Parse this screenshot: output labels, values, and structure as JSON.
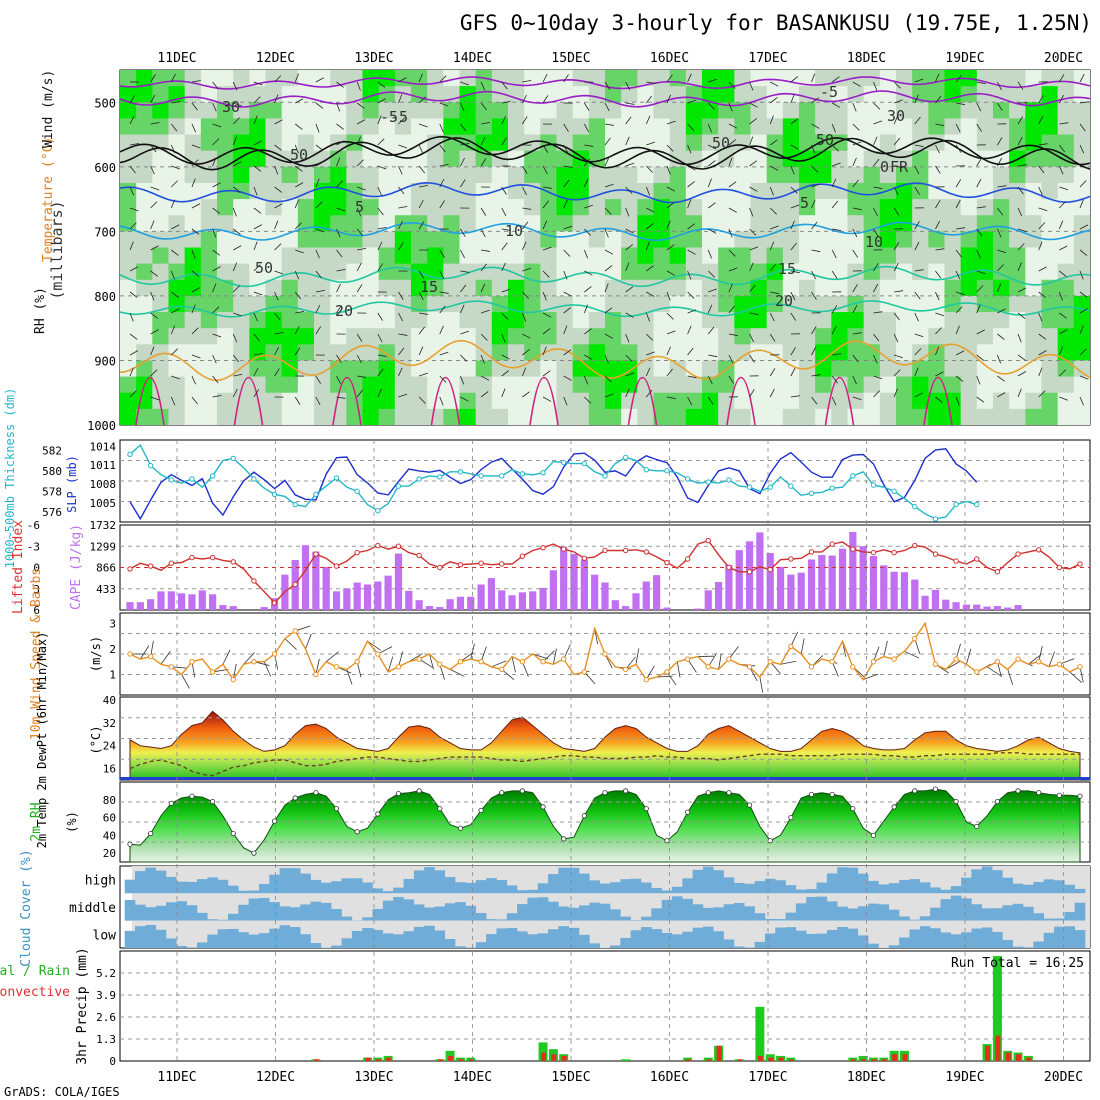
{
  "header": {
    "title": "GFS 0~10day 3-hourly for BASANKUSU (19.75E, 1.25N)",
    "credit": "GrADS: COLA/IGES"
  },
  "colors": {
    "rh_light": "#e8f4e8",
    "rh_mid": "#c6d8c6",
    "rh_green": "#66d466",
    "rh_bright": "#00e800",
    "temp_purple": "#9a1ec8",
    "temp_blue": "#2050e0",
    "temp_lblue": "#20a0e0",
    "temp_teal": "#20c8a0",
    "temp_orange": "#e8a030",
    "temp_red": "#d02080",
    "slp": "#1c2ed0",
    "thickness": "#20b8c8",
    "lifted_index": "#d03030",
    "cape": "#c070f0",
    "wind10m": "#e89020",
    "cloud": "#70acd8",
    "cloud_bg": "#e0e0e0",
    "precip_total": "#22c822",
    "precip_conv": "#e03020",
    "axis_label_green": "#20b020",
    "axis_label_orange": "#e08020",
    "axis_label_red": "#e03030"
  },
  "chart_data": [
    {
      "type": "heatmap",
      "panel": "upper-air",
      "ylabel_parts": [
        "RH (%)",
        "Temperature (°C)",
        "Wind (m/s)"
      ],
      "ylabel_right": "(millibars)",
      "yticks": [
        "500",
        "600",
        "700",
        "800",
        "900",
        "1000"
      ],
      "ylim": [
        1000,
        450
      ],
      "contour_labels": [
        "-5",
        "-5",
        "-5",
        "0",
        "FR",
        "5",
        "5",
        "10",
        "10",
        "15",
        "15",
        "20",
        "20",
        "50",
        "50",
        "50",
        "30",
        "30",
        "50"
      ]
    },
    {
      "type": "line",
      "panel": "slp-thickness",
      "ylabel_left": "1000~500mb Thickness (dm)",
      "ylabel_right": "SLP (mb)",
      "yticks_left": [
        "582",
        "580",
        "578",
        "576"
      ],
      "yticks_right": [
        "1014",
        "1011",
        "1008",
        "1005"
      ],
      "series": [
        {
          "name": "SLP (mb)",
          "values": [
            1005.2,
            1002.5,
            1005.5,
            1008.3,
            1009.5,
            1008.6,
            1007.8,
            1008.9,
            1005,
            1003.1,
            1006,
            1008.5,
            1009.9,
            1008.7,
            1007.3,
            1008.6,
            1006.3,
            1005.6,
            1005.5,
            1009.6,
            1012.2,
            1012.3,
            1009.5,
            1008.2,
            1006.6,
            1006.3,
            1008.4,
            1010.4,
            1010.1,
            1009.9,
            1010.2,
            1009.1,
            1008.1,
            1008.7,
            1010.3,
            1011.5,
            1012.1,
            1010.4,
            1008.8,
            1007,
            1006.4,
            1007.6,
            1010.7,
            1012.8,
            1012.9,
            1011.8,
            1009.9,
            1010.1,
            1009.3,
            1011.5,
            1012.5,
            1011.9,
            1011.4,
            1009.1,
            1005.8,
            1005.1,
            1007.8,
            1010.1,
            1010.6,
            1010.1,
            1007.3,
            1006.5,
            1009.7,
            1012,
            1013,
            1011.5,
            1009.9,
            1009.1,
            1009.1,
            1011.9,
            1012.6,
            1012.7,
            1011.2,
            1007.9,
            1005.2,
            1005.9,
            1008.6,
            1012.1,
            1013.4,
            1013.6,
            1011.2,
            1010.1,
            1008.3
          ]
        },
        {
          "name": "1000~500mb Thickness (dm)",
          "values": [
            581.6,
            582.5,
            580.5,
            579.6,
            579.1,
            578.8,
            579.2,
            578.4,
            579.5,
            581,
            581.2,
            580.3,
            579.2,
            578.3,
            577.7,
            577.5,
            576.7,
            576.5,
            577.7,
            578.5,
            579.3,
            578.4,
            578,
            576.7,
            576.1,
            576.8,
            578.5,
            578.5,
            579.2,
            579.5,
            579.4,
            579.9,
            579.9,
            579.7,
            579.5,
            579.5,
            579.5,
            580.1,
            579.7,
            579.6,
            579.8,
            580.9,
            580.8,
            580.7,
            580.7,
            579.9,
            579.5,
            580.7,
            581.3,
            581,
            580.1,
            580,
            580,
            579.8,
            579.2,
            578.8,
            578.9,
            578.8,
            579.1,
            578.5,
            578.4,
            578,
            578.4,
            579.4,
            578.5,
            577.6,
            577.8,
            577.9,
            578.3,
            578.4,
            579.5,
            579.9,
            578.6,
            578.4,
            578,
            577.3,
            576.5,
            575.8,
            575.3,
            575.5,
            576.7,
            577,
            576.7
          ]
        }
      ]
    },
    {
      "type": "bar",
      "panel": "cape-li",
      "ylabel_left": "Lifted Index",
      "ylabel_right": "CAPE (J/kg)",
      "yticks_left": [
        "-6",
        "-3",
        "0",
        "3",
        "6"
      ],
      "yticks_right": [
        "1732",
        "1299",
        "866",
        "433"
      ],
      "series": [
        {
          "name": "CAPE (J/kg)",
          "values": [
            160,
            160,
            220,
            380,
            380,
            340,
            320,
            400,
            320,
            100,
            80,
            0,
            0,
            60,
            240,
            720,
            1020,
            1320,
            1190,
            880,
            380,
            440,
            560,
            520,
            580,
            700,
            1150,
            390,
            200,
            80,
            60,
            220,
            270,
            270,
            520,
            650,
            400,
            300,
            360,
            380,
            450,
            810,
            1290,
            1140,
            1030,
            720,
            560,
            200,
            80,
            340,
            580,
            710,
            50,
            0,
            0,
            30,
            400,
            570,
            920,
            1220,
            1400,
            1580,
            1160,
            880,
            720,
            760,
            1030,
            1120,
            1110,
            1250,
            1590,
            1300,
            1100,
            910,
            780,
            770,
            620,
            290,
            410,
            210,
            160,
            110,
            110,
            70,
            80,
            50,
            100
          ]
        },
        {
          "name": "Lifted Index",
          "values": [
            0.2,
            -0.6,
            -0.2,
            0.4,
            -0.6,
            -0.7,
            -1.4,
            -1.2,
            -1.4,
            -1,
            -0.8,
            0.2,
            1.9,
            3.4,
            5,
            3.4,
            2.4,
            0.4,
            -1.9,
            -1.3,
            -0.2,
            -0.9,
            -2.1,
            -2.4,
            -3.1,
            -2.6,
            -3,
            -2.1,
            -1.7,
            -0.5,
            0,
            -0.8,
            -0.4,
            -0.5,
            -0.6,
            -0.4,
            -0.5,
            -0.5,
            -1.6,
            -2.4,
            -2.8,
            -3.3,
            -2.6,
            -2.2,
            -1.3,
            -1.5,
            -2.4,
            -2.4,
            -2.4,
            -2.5,
            -2.2,
            -1.5,
            -0.7,
            0.1,
            -1.2,
            -3.3,
            -3.8,
            -1.8,
            0,
            0.6,
            0.6,
            -0.1,
            0.3,
            -1.1,
            -1.2,
            -1.3,
            -2.2,
            -2.2,
            -3.3,
            -3.6,
            -2.6,
            -2.2,
            -2.1,
            -2.5,
            -2.1,
            -2.4,
            -3.1,
            -2.9,
            -1.9,
            -1.5,
            -0.9,
            -0.5,
            -1.2,
            0,
            0.6,
            -0.7,
            -1.9,
            -2.2,
            -2.5,
            -1.5,
            0,
            0.2,
            -0.5
          ]
        }
      ]
    },
    {
      "type": "line",
      "panel": "wind10m",
      "ylabel": "10m Wind Speed & Barbs",
      "ylabel_right": "(m/s)",
      "yticks": [
        "3",
        "2",
        "1"
      ],
      "series": [
        {
          "name": "10m Wind Speed (m/s)",
          "values": [
            1.8,
            1.6,
            1.7,
            1.4,
            1.3,
            1,
            1.5,
            1.6,
            1.1,
            1.4,
            0.8,
            1.4,
            1.5,
            1.5,
            1.8,
            2.4,
            2.7,
            2,
            1,
            1.5,
            1.3,
            1.2,
            1.5,
            2.3,
            1.8,
            1.1,
            1.3,
            1.5,
            1.6,
            1.8,
            1.4,
            1.2,
            1.5,
            1.6,
            1.5,
            1.3,
            1.2,
            1.7,
            1.5,
            1.8,
            1.5,
            1.4,
            1.6,
            1,
            1.1,
            2.8,
            1.8,
            1.3,
            1.2,
            1.4,
            0.8,
            0.9,
            1.1,
            1.5,
            1.6,
            1.7,
            1.3,
            1.2,
            1.6,
            1.4,
            1.3,
            0.9,
            1.5,
            1.4,
            2.1,
            1.8,
            1.3,
            1.6,
            1.5,
            2.3,
            1.3,
            0.8,
            1.5,
            1.7,
            1.6,
            1.9,
            2.4,
            3,
            1.4,
            1.2,
            1.6,
            1.4,
            1.1,
            1.3,
            1.5,
            1.2,
            1.6,
            1.4,
            1.5,
            1.3,
            1.4,
            1.1,
            1.3
          ]
        }
      ]
    },
    {
      "type": "area",
      "panel": "temperature",
      "ylabel": "2m Temp 2m DewPt (6hr Min/Max)",
      "ylabel_right": "(°C)",
      "yticks": [
        "40",
        "32",
        "24",
        "16"
      ],
      "series": [
        {
          "name": "2m Temp",
          "values": [
            26,
            24,
            23.5,
            23,
            24,
            28,
            31,
            32,
            36,
            33,
            29,
            26,
            23.5,
            22,
            22.5,
            24,
            28,
            31,
            31.5,
            30,
            27,
            25,
            23,
            22.5,
            22,
            23,
            27,
            30.5,
            31,
            30,
            27,
            25,
            23,
            22.5,
            22.5,
            25,
            29,
            33,
            34,
            31,
            28,
            25,
            23,
            22.5,
            22,
            23,
            27,
            30,
            31,
            30,
            27,
            25,
            23,
            22,
            22,
            24,
            28,
            30,
            31,
            29,
            27,
            25,
            23,
            22,
            22,
            23,
            26,
            29,
            30,
            29,
            27,
            24,
            23,
            22.5,
            22.5,
            23,
            26,
            28.5,
            29,
            29,
            26,
            24,
            23,
            22.5,
            22,
            22.5,
            24,
            26,
            27,
            25,
            23,
            22,
            21.5
          ]
        },
        {
          "name": "2m DewPt",
          "values": [
            16,
            17.5,
            18.5,
            19,
            18,
            17,
            15,
            14,
            13.5,
            15,
            16.5,
            17,
            18,
            18.5,
            19,
            19,
            18,
            17,
            17,
            17.5,
            18.5,
            19,
            19.5,
            20,
            20,
            19.5,
            19,
            18.5,
            18.5,
            19,
            19.5,
            20,
            20,
            20,
            20,
            19.5,
            19,
            19,
            18.5,
            19,
            19.5,
            20,
            20.5,
            20.5,
            20,
            20,
            19.5,
            19.5,
            19.5,
            20,
            20,
            20.5,
            20,
            20,
            19.5,
            19.5,
            19.5,
            19,
            19.5,
            20,
            20.5,
            21,
            21,
            21,
            20.5,
            20.5,
            20.5,
            20.5,
            20.5,
            21,
            21,
            21,
            21,
            20.5,
            20.5,
            20,
            20,
            20.5,
            20.5,
            21,
            21,
            21,
            21,
            21,
            21.5,
            21.5,
            21.5,
            21,
            21,
            21,
            21,
            21,
            21
          ]
        }
      ]
    },
    {
      "type": "area",
      "panel": "rh2m",
      "ylabel": "2m RH",
      "ylabel_right": "(%)",
      "yticks": [
        "80",
        "60",
        "40",
        "20"
      ],
      "series": [
        {
          "name": "2m RH (%)",
          "values": [
            30,
            29,
            42,
            62,
            76,
            82,
            84,
            83,
            78,
            62,
            42,
            26,
            20,
            35,
            56,
            74,
            82,
            86,
            88,
            84,
            70,
            50,
            44,
            48,
            64,
            80,
            87,
            88,
            90,
            86,
            70,
            52,
            48,
            52,
            68,
            82,
            88,
            90,
            90,
            88,
            72,
            50,
            36,
            38,
            62,
            82,
            88,
            90,
            90,
            86,
            70,
            40,
            34,
            44,
            66,
            84,
            88,
            90,
            88,
            86,
            74,
            50,
            34,
            40,
            60,
            82,
            86,
            88,
            86,
            84,
            70,
            48,
            40,
            56,
            72,
            86,
            90,
            90,
            92,
            90,
            78,
            55,
            50,
            62,
            78,
            88,
            90,
            90,
            88,
            86,
            85,
            85,
            84
          ]
        }
      ]
    },
    {
      "type": "heatmap",
      "panel": "cloud-cover",
      "ylabel": "Cloud Cover (%)",
      "yticks": [
        "high",
        "middle",
        "low"
      ]
    },
    {
      "type": "bar",
      "panel": "precip",
      "ylabel": "3hr Precip (mm)",
      "ylabel_left_parts": [
        "Total / Rain",
        "Convective"
      ],
      "yticks": [
        "5.2",
        "3.9",
        "2.6",
        "1.3",
        "0"
      ],
      "annotation": "Run Total = 16.25",
      "series": [
        {
          "name": "Total",
          "values": [
            0,
            0,
            0,
            0,
            0,
            0,
            0,
            0,
            0,
            0,
            0,
            0,
            0,
            0,
            0,
            0,
            0,
            0,
            0.1,
            0,
            0,
            0,
            0,
            0.2,
            0.2,
            0.3,
            0,
            0,
            0,
            0,
            0.1,
            0.6,
            0.2,
            0.2,
            0,
            0,
            0,
            0,
            0,
            0,
            1.1,
            0.7,
            0.4,
            0,
            0,
            0,
            0,
            0,
            0.1,
            0,
            0,
            0,
            0,
            0,
            0.2,
            0,
            0.2,
            0.9,
            0,
            0.1,
            0,
            3.2,
            0.4,
            0.3,
            0.2,
            0,
            0,
            0,
            0,
            0,
            0.2,
            0.3,
            0.2,
            0.2,
            0.6,
            0.6,
            0,
            0,
            0,
            0,
            0,
            0,
            0,
            1,
            6.2,
            0.6,
            0.5,
            0.3,
            0,
            0,
            0,
            0,
            0
          ]
        },
        {
          "name": "Convective",
          "values": [
            0,
            0,
            0,
            0,
            0,
            0,
            0,
            0,
            0,
            0,
            0,
            0,
            0,
            0,
            0,
            0,
            0,
            0,
            0.1,
            0,
            0,
            0,
            0,
            0.2,
            0.1,
            0.2,
            0,
            0,
            0,
            0,
            0.1,
            0.3,
            0.1,
            0.1,
            0,
            0,
            0,
            0,
            0,
            0,
            0.5,
            0.4,
            0.3,
            0,
            0,
            0,
            0,
            0,
            0,
            0,
            0,
            0,
            0,
            0,
            0.1,
            0,
            0.1,
            0.9,
            0,
            0.1,
            0,
            0.3,
            0.2,
            0.2,
            0.1,
            0,
            0,
            0,
            0,
            0,
            0.1,
            0.1,
            0.1,
            0.1,
            0.4,
            0.4,
            0,
            0,
            0,
            0,
            0,
            0,
            0,
            0.9,
            1.5,
            0.5,
            0.4,
            0.2,
            0,
            0,
            0,
            0,
            0
          ]
        }
      ]
    }
  ],
  "time_axis": [
    "11DEC",
    "12DEC",
    "13DEC",
    "14DEC",
    "15DEC",
    "16DEC",
    "17DEC",
    "18DEC",
    "19DEC",
    "20DEC"
  ]
}
